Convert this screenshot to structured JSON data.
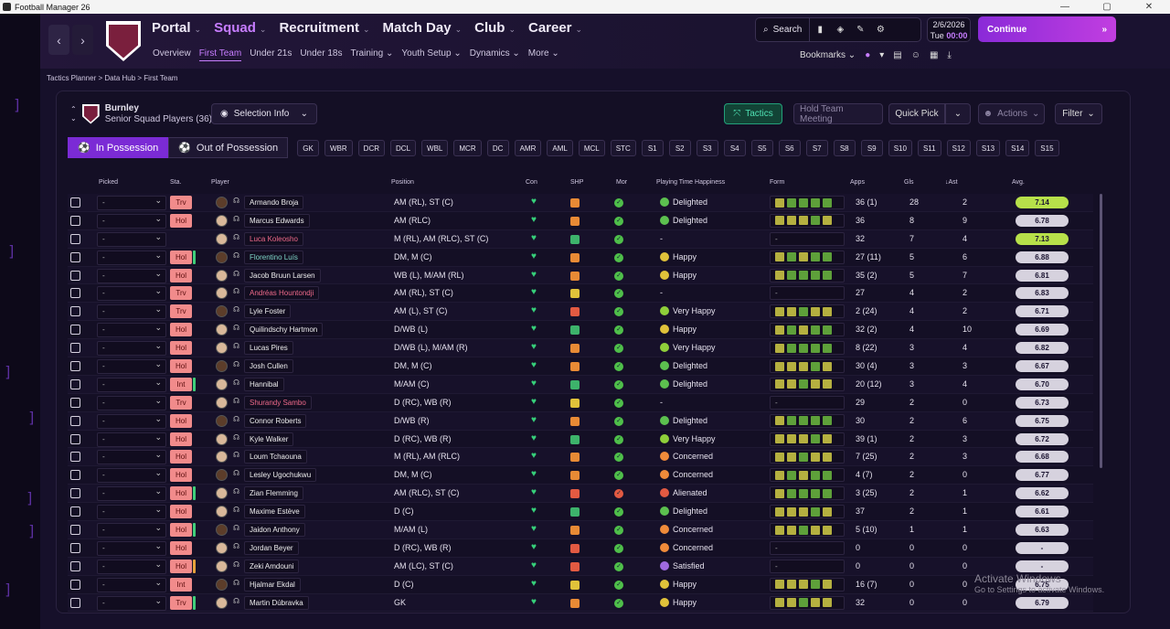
{
  "window": {
    "title": "Football Manager 26",
    "controls": [
      "—",
      "▢",
      "✕"
    ]
  },
  "colors": {
    "accent": "#c77dff",
    "continue": "#a833df",
    "tactics": "#4fe0b3",
    "hold": "#f18b8b"
  },
  "nav": {
    "main": [
      {
        "label": "Portal"
      },
      {
        "label": "Squad"
      },
      {
        "label": "Recruitment"
      },
      {
        "label": "Match Day"
      },
      {
        "label": "Club"
      },
      {
        "label": "Career"
      }
    ],
    "sub": [
      "Overview",
      "First Team",
      "Under 21s",
      "Under 18s",
      "Training",
      "Youth Setup",
      "Dynamics",
      "More"
    ],
    "search": "Search",
    "date": "2/6/2026",
    "day": "Tue",
    "time": "00:00",
    "continue": "Continue",
    "bookmarks": "Bookmarks"
  },
  "breadcrumbs": "Tactics Planner > Data Hub > First Team",
  "panel": {
    "club": "Burnley",
    "squad": "Senior Squad Players (36)",
    "selection_info": "Selection Info",
    "tactics": "Tactics",
    "hold_meeting": "Hold Team Meeting",
    "quick_pick": "Quick Pick",
    "actions": "Actions",
    "filter": "Filter",
    "in_possession": "In Possession",
    "out_possession": "Out of Possession",
    "positions": [
      "GK",
      "WBR",
      "DCR",
      "DCL",
      "WBL",
      "MCR",
      "DC",
      "AMR",
      "AML",
      "MCL",
      "STC",
      "S1",
      "S2",
      "S3",
      "S4",
      "S5",
      "S6",
      "S7",
      "S8",
      "S9",
      "S10",
      "S11",
      "S12",
      "S13",
      "S14",
      "S15"
    ]
  },
  "table": {
    "headers": {
      "picked": "Picked",
      "sta": "Sta.",
      "player": "Player",
      "position": "Position",
      "con": "Con",
      "shp": "SHP",
      "mor": "Mor",
      "pth": "Playing Time Happiness",
      "form": "Form",
      "apps": "Apps",
      "gls": "Gls",
      "ast": "Ast",
      "avg": "Avg."
    },
    "rows": [
      {
        "sta": "Trv",
        "name": "Armando Broja",
        "pos": "AM (RL), ST (C)",
        "hap": "Delighted",
        "apps": "36 (1)",
        "gls": "28",
        "ast": "2",
        "avg": "7.14",
        "hi": true
      },
      {
        "sta": "Hol",
        "name": "Marcus Edwards",
        "pos": "AM (RLC)",
        "hap": "Delighted",
        "apps": "36",
        "gls": "8",
        "ast": "9",
        "avg": "6.78"
      },
      {
        "sta": "",
        "name": "Luca Koleosho",
        "pos": "M (RL), AM (RLC), ST (C)",
        "hap": "-",
        "apps": "32",
        "gls": "7",
        "ast": "4",
        "avg": "7.13",
        "hi": true,
        "red": true
      },
      {
        "sta": "Hol",
        "name": "Florentino Luís",
        "pos": "DM, M (C)",
        "hap": "Happy",
        "apps": "27 (11)",
        "gls": "5",
        "ast": "6",
        "avg": "6.88",
        "grn": true
      },
      {
        "sta": "Hol",
        "name": "Jacob Bruun Larsen",
        "pos": "WB (L), M/AM (RL)",
        "hap": "Happy",
        "apps": "35 (2)",
        "gls": "5",
        "ast": "7",
        "avg": "6.81"
      },
      {
        "sta": "Trv",
        "name": "Andréas Hountondji",
        "pos": "AM (RL), ST (C)",
        "hap": "-",
        "apps": "27",
        "gls": "4",
        "ast": "2",
        "avg": "6.83",
        "red": true
      },
      {
        "sta": "Trv",
        "name": "Lyle Foster",
        "pos": "AM (L), ST (C)",
        "hap": "Very Happy",
        "apps": "2 (24)",
        "gls": "4",
        "ast": "2",
        "avg": "6.71"
      },
      {
        "sta": "Hol",
        "name": "Quilindschy Hartmon",
        "pos": "D/WB (L)",
        "hap": "Happy",
        "apps": "32 (2)",
        "gls": "4",
        "ast": "10",
        "avg": "6.69"
      },
      {
        "sta": "Hol",
        "name": "Lucas Pires",
        "pos": "D/WB (L), M/AM (R)",
        "hap": "Very Happy",
        "apps": "8 (22)",
        "gls": "3",
        "ast": "4",
        "avg": "6.82"
      },
      {
        "sta": "Hol",
        "name": "Josh Cullen",
        "pos": "DM, M (C)",
        "hap": "Delighted",
        "apps": "30 (4)",
        "gls": "3",
        "ast": "3",
        "avg": "6.67"
      },
      {
        "sta": "Int",
        "name": "Hannibal",
        "pos": "M/AM (C)",
        "hap": "Delighted",
        "apps": "20 (12)",
        "gls": "3",
        "ast": "4",
        "avg": "6.70"
      },
      {
        "sta": "Trv",
        "name": "Shurandy Sambo",
        "pos": "D (RC), WB (R)",
        "hap": "-",
        "apps": "29",
        "gls": "2",
        "ast": "0",
        "avg": "6.73",
        "red": true
      },
      {
        "sta": "Hol",
        "name": "Connor Roberts",
        "pos": "D/WB (R)",
        "hap": "Delighted",
        "apps": "30",
        "gls": "2",
        "ast": "6",
        "avg": "6.75"
      },
      {
        "sta": "Hol",
        "name": "Kyle Walker",
        "pos": "D (RC), WB (R)",
        "hap": "Very Happy",
        "apps": "39 (1)",
        "gls": "2",
        "ast": "3",
        "avg": "6.72"
      },
      {
        "sta": "Hol",
        "name": "Loum Tchaouna",
        "pos": "M (RL), AM (RLC)",
        "hap": "Concerned",
        "apps": "7 (25)",
        "gls": "2",
        "ast": "3",
        "avg": "6.68"
      },
      {
        "sta": "Hol",
        "name": "Lesley Ugochukwu",
        "pos": "DM, M (C)",
        "hap": "Concerned",
        "apps": "4 (7)",
        "gls": "2",
        "ast": "0",
        "avg": "6.77"
      },
      {
        "sta": "Hol",
        "name": "Zian Flemming",
        "pos": "AM (RLC), ST (C)",
        "hap": "Alienated",
        "apps": "3 (25)",
        "gls": "2",
        "ast": "1",
        "avg": "6.62"
      },
      {
        "sta": "Hol",
        "name": "Maxime Estève",
        "pos": "D (C)",
        "hap": "Delighted",
        "apps": "37",
        "gls": "2",
        "ast": "1",
        "avg": "6.61"
      },
      {
        "sta": "Hol",
        "name": "Jaidon Anthony",
        "pos": "M/AM (L)",
        "hap": "Concerned",
        "apps": "5 (10)",
        "gls": "1",
        "ast": "1",
        "avg": "6.63"
      },
      {
        "sta": "Hol",
        "name": "Jordan Beyer",
        "pos": "D (RC), WB (R)",
        "hap": "Concerned",
        "apps": "0",
        "gls": "0",
        "ast": "0",
        "avg": "-"
      },
      {
        "sta": "Hol",
        "name": "Zeki Amdouni",
        "pos": "AM (LC), ST (C)",
        "hap": "Satisfied",
        "apps": "0",
        "gls": "0",
        "ast": "0",
        "avg": "-"
      },
      {
        "sta": "Int",
        "name": "Hjalmar Ekdal",
        "pos": "D (C)",
        "hap": "Happy",
        "apps": "16 (7)",
        "gls": "0",
        "ast": "0",
        "avg": "6.75"
      },
      {
        "sta": "Trv",
        "name": "Martin Dúbravka",
        "pos": "GK",
        "hap": "Happy",
        "apps": "32",
        "gls": "0",
        "ast": "0",
        "avg": "6.79"
      }
    ]
  },
  "watermark": {
    "title": "Activate Windows",
    "sub": "Go to Settings to activate Windows."
  }
}
